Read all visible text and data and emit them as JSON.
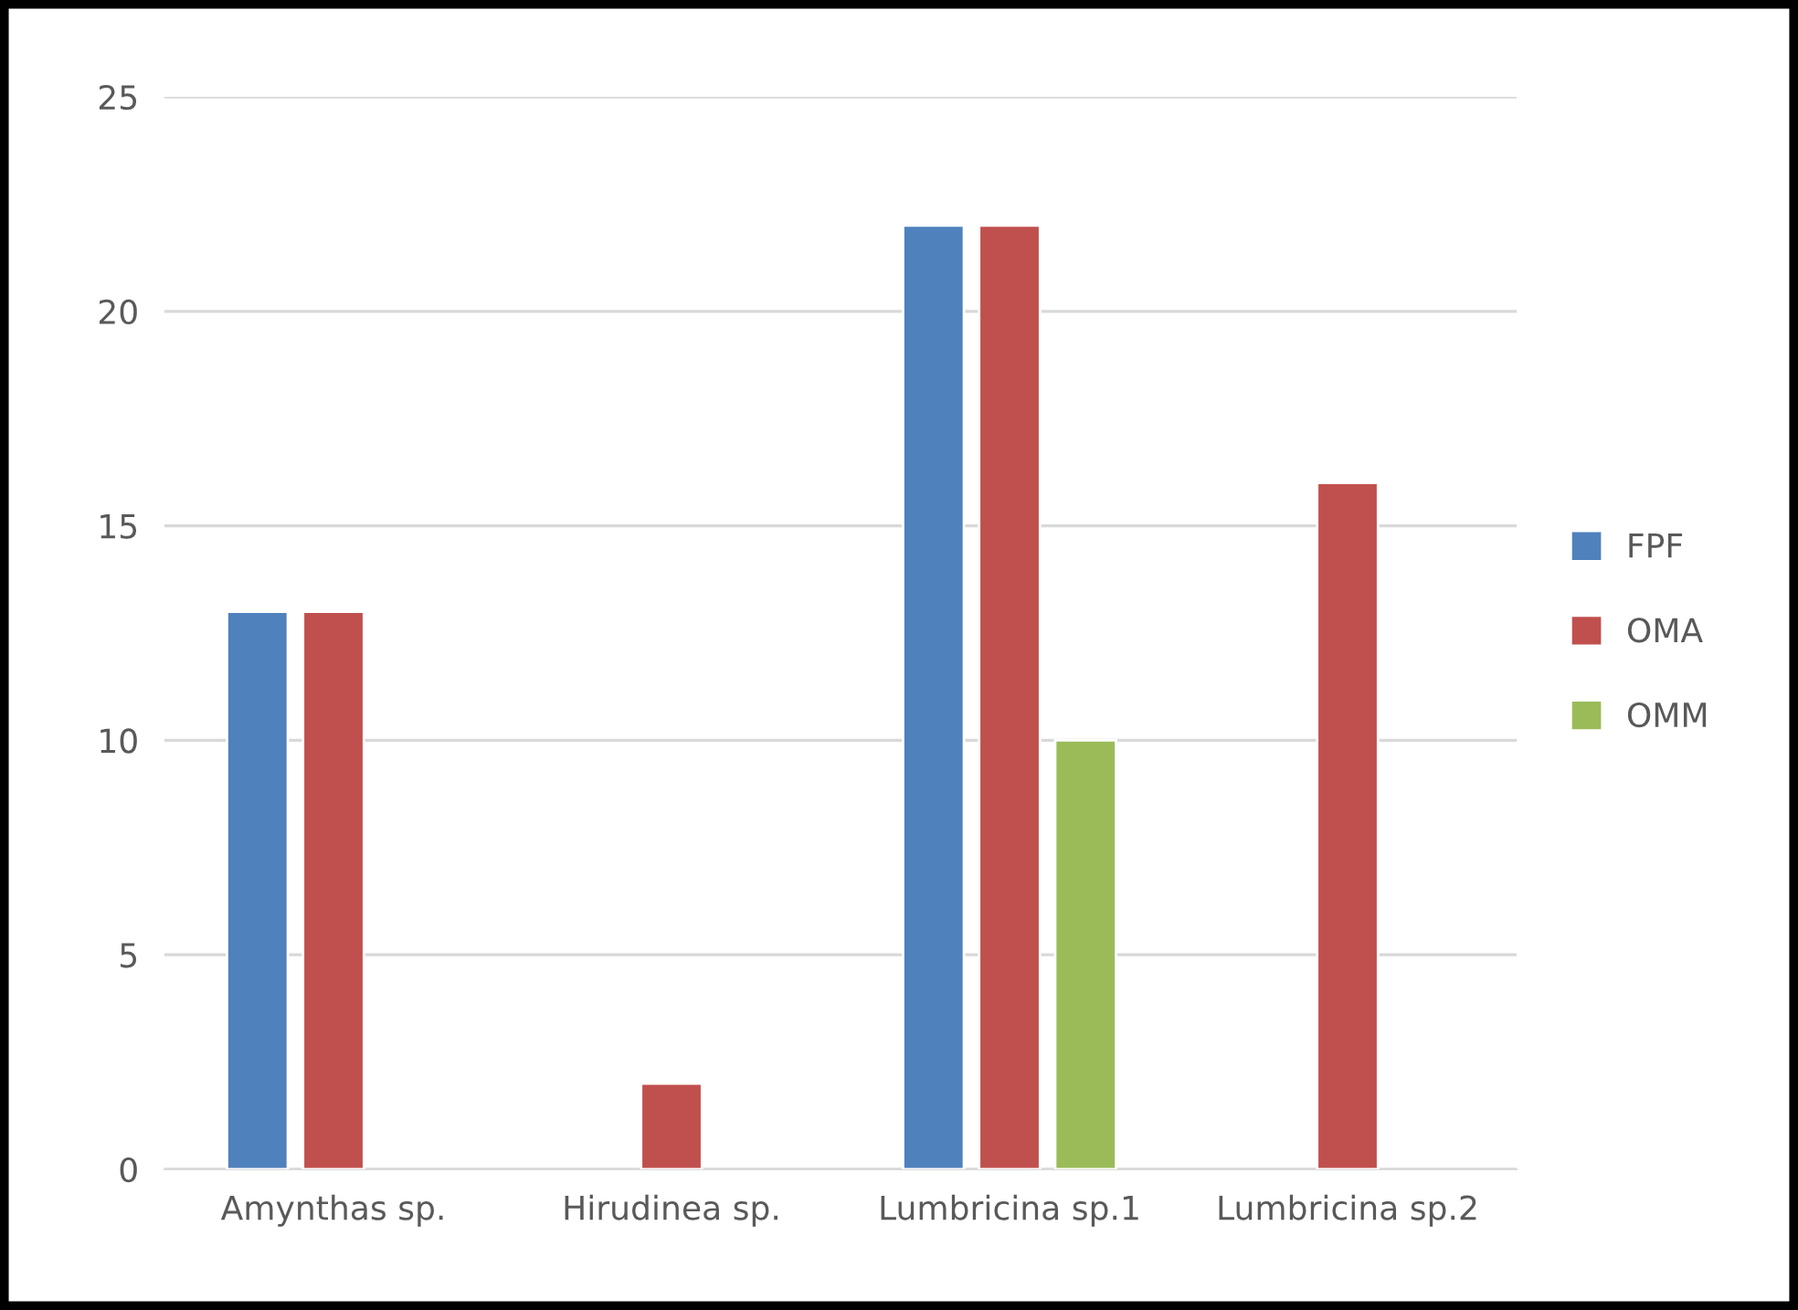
{
  "chart_data": {
    "type": "bar",
    "categories": [
      "Amynthas sp.",
      "Hirudinea sp.",
      "Lumbricina sp.1",
      "Lumbricina sp.2"
    ],
    "series": [
      {
        "name": "FPF",
        "color": "#4f81bd",
        "values": [
          13,
          null,
          22,
          null
        ]
      },
      {
        "name": "OMA",
        "color": "#c0504d",
        "values": [
          13,
          2,
          22,
          16
        ]
      },
      {
        "name": "OMM",
        "color": "#9bbb59",
        "values": [
          null,
          null,
          10,
          null
        ]
      }
    ],
    "ylim": [
      0,
      25
    ],
    "yticks": [
      0,
      5,
      10,
      15,
      20,
      25
    ],
    "grid": "y",
    "legend": "right"
  }
}
